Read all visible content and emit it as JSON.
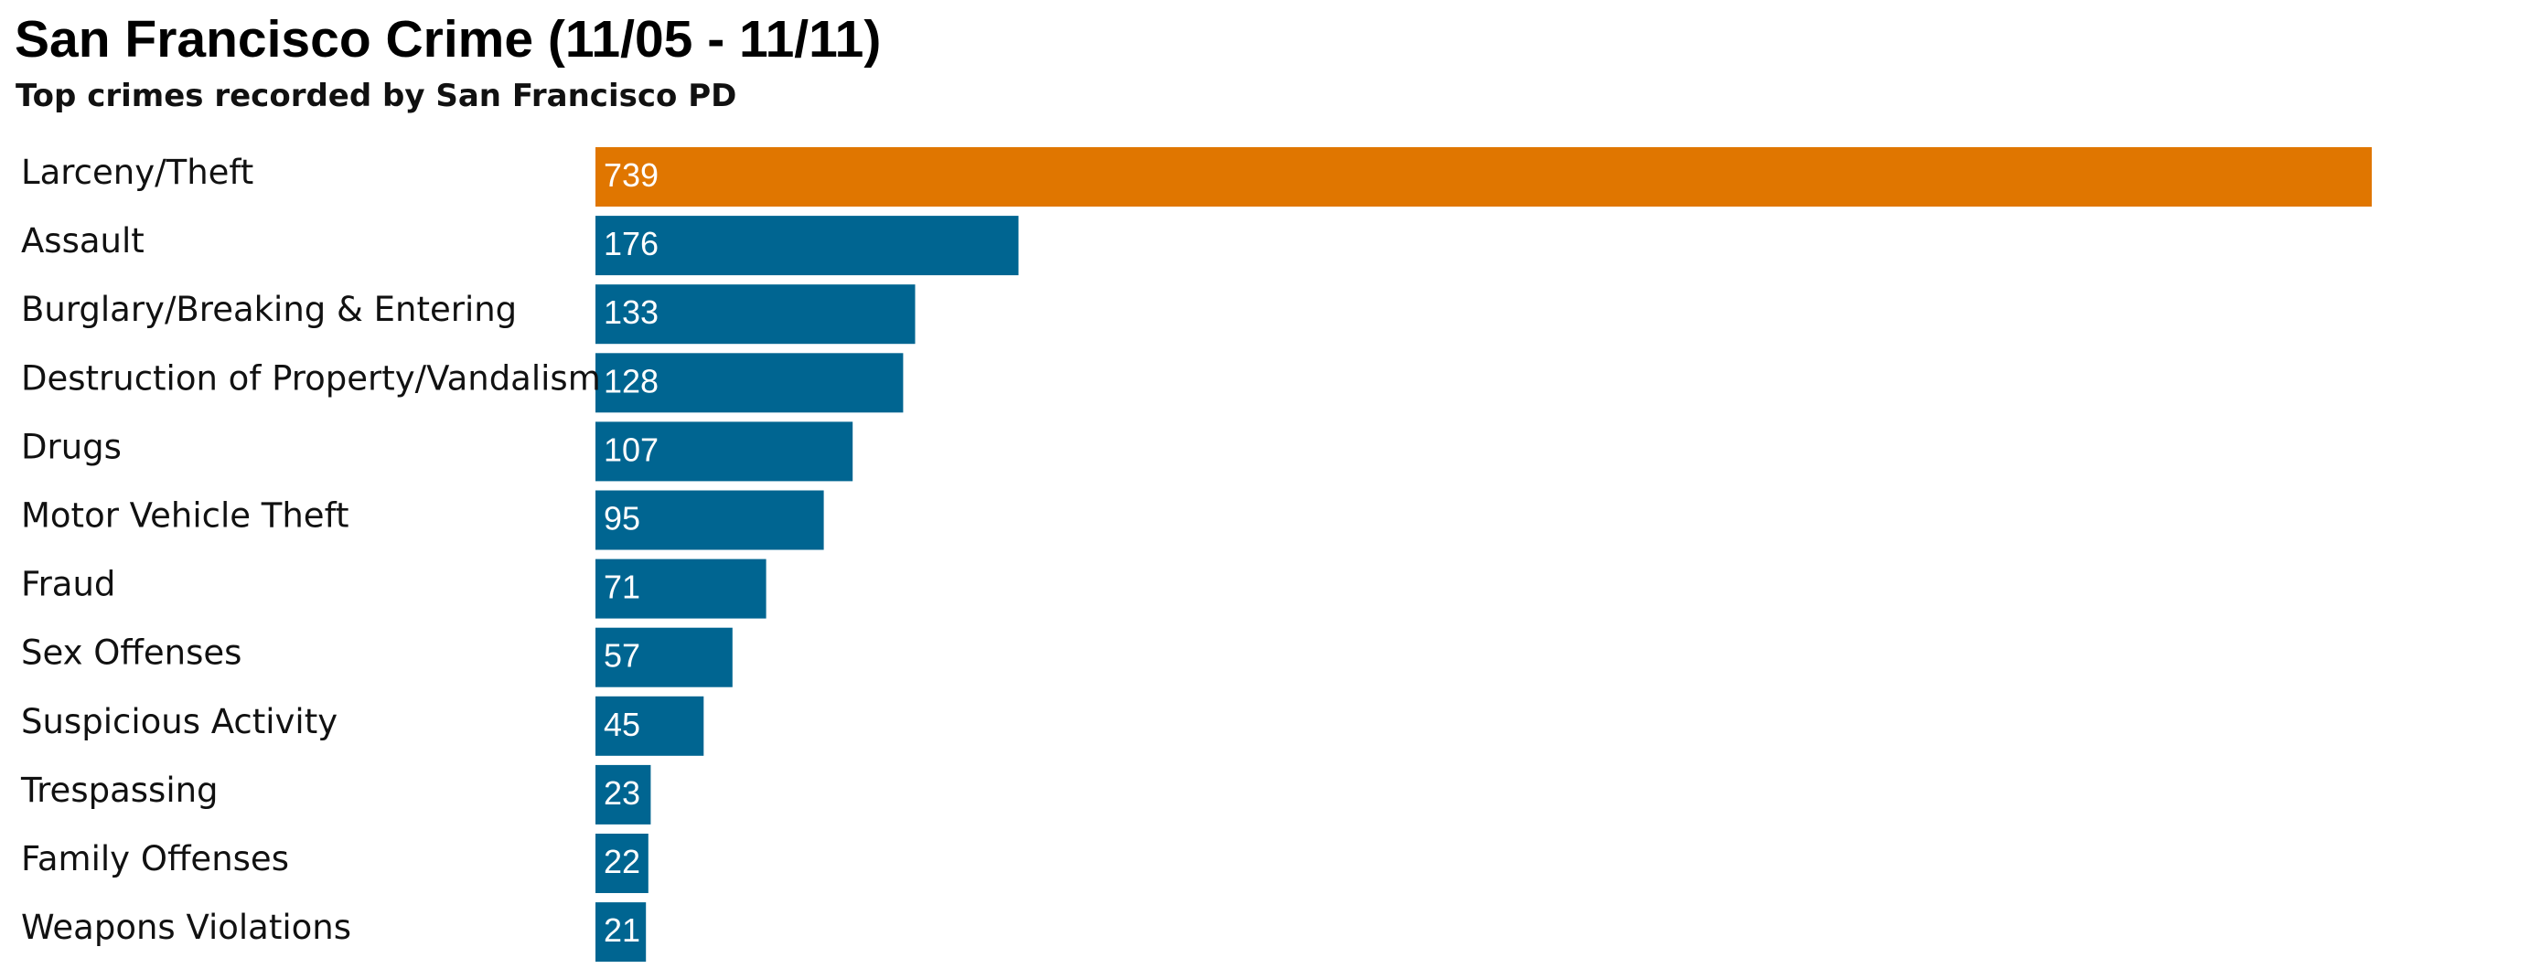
{
  "chart_data": {
    "type": "bar",
    "orientation": "horizontal",
    "title": "San Francisco Crime (11/05 - 11/11)",
    "subtitle": "Top crimes recorded by San Francisco PD",
    "categories": [
      "Larceny/Theft",
      "Assault",
      "Burglary/Breaking & Entering",
      "Destruction of Property/Vandalism",
      "Drugs",
      "Motor Vehicle Theft",
      "Fraud",
      "Sex Offenses",
      "Suspicious Activity",
      "Trespassing",
      "Family Offenses",
      "Weapons Violations"
    ],
    "values": [
      739,
      176,
      133,
      128,
      107,
      95,
      71,
      57,
      45,
      23,
      22,
      21
    ],
    "highlight_index": 0,
    "colors": {
      "highlight": "#e07600",
      "default": "#006591"
    },
    "xlim": [
      0,
      739
    ],
    "grid": false,
    "legend": "none",
    "data_labels": "inside-left"
  }
}
